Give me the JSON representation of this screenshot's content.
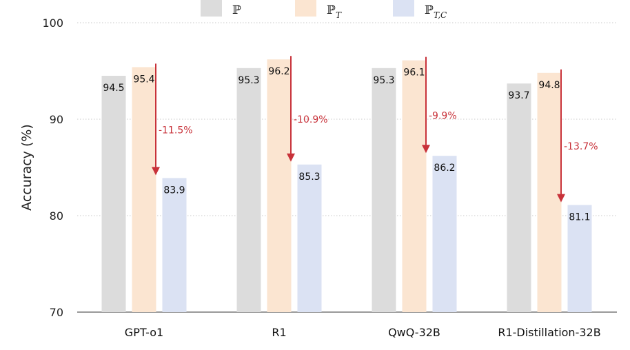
{
  "chart_data": {
    "type": "bar",
    "title": "",
    "xlabel": "",
    "ylabel": "Accuracy (%)",
    "ylim": [
      70,
      100
    ],
    "yticks": [
      70,
      80,
      90,
      100
    ],
    "categories": [
      "GPT-o1",
      "R1",
      "QwQ-32B",
      "R1-Distillation-32B"
    ],
    "series": [
      {
        "name": "ℙ",
        "sub": "",
        "color": "#dcdcdc",
        "values": [
          94.5,
          95.3,
          95.3,
          93.7
        ]
      },
      {
        "name": "ℙ",
        "sub": "T",
        "color": "#fbe5d1",
        "values": [
          95.4,
          96.2,
          96.1,
          94.8
        ]
      },
      {
        "name": "ℙ",
        "sub": "T,C",
        "color": "#dbe2f3",
        "values": [
          83.9,
          85.3,
          86.2,
          81.1
        ]
      }
    ],
    "annotations": [
      {
        "category": "GPT-o1",
        "label": "-11.5%"
      },
      {
        "category": "R1",
        "label": "-10.9%"
      },
      {
        "category": "QwQ-32B",
        "label": "-9.9%"
      },
      {
        "category": "R1-Distillation-32B",
        "label": "-13.7%"
      }
    ],
    "arrow_color": "#c8323a",
    "grid": true,
    "legend_position": "top"
  }
}
